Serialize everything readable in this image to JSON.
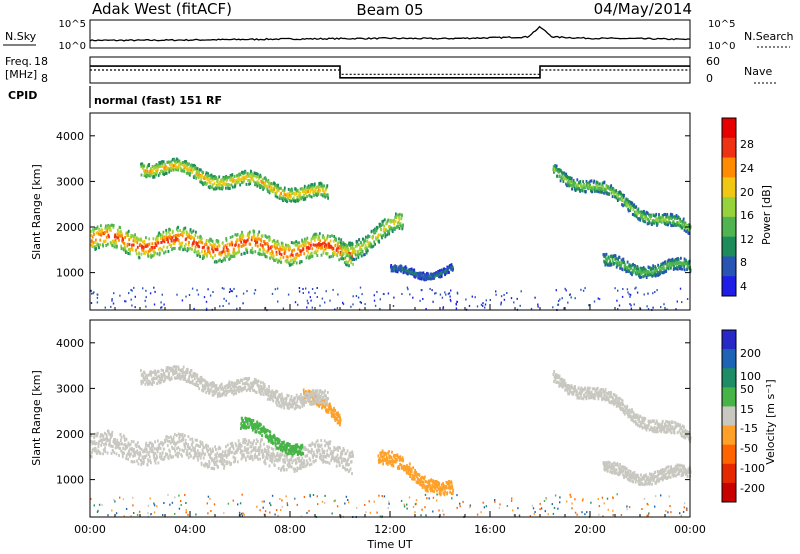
{
  "header": {
    "station": "Adak West (fitACF)",
    "beam": "Beam 05",
    "date": "04/May/2014"
  },
  "sky_panel": {
    "left_label": "N.Sky",
    "right_label": "N.Search",
    "left_ticks": [
      "10^5",
      "10^0"
    ],
    "right_ticks": [
      "10^5",
      "10^0"
    ]
  },
  "freq_panel": {
    "left_label_line1": "Freq.",
    "left_label_line2": "[MHz]",
    "left_ticks": [
      "18",
      "8"
    ],
    "right_ticks": [
      "60",
      "0"
    ],
    "right_label": "Nave",
    "freq_segments": [
      {
        "from_hour": 0,
        "to_hour": 10,
        "value": 14.5
      },
      {
        "from_hour": 10,
        "to_hour": 18,
        "value": 10.0
      },
      {
        "from_hour": 18,
        "to_hour": 24,
        "value": 14.5
      }
    ],
    "nave_segments": [
      {
        "from_hour": 0,
        "to_hour": 10,
        "value": 30
      },
      {
        "from_hour": 10,
        "to_hour": 18,
        "value": 20
      },
      {
        "from_hour": 18,
        "to_hour": 24,
        "value": 30
      }
    ]
  },
  "cpid": {
    "label": "CPID",
    "program": "normal (fast) 151 RF"
  },
  "time_axis": {
    "label": "Time UT",
    "ticks": [
      "00:00",
      "04:00",
      "08:00",
      "12:00",
      "16:00",
      "20:00",
      "00:00"
    ]
  },
  "power_panel": {
    "ylabel": "Slant Range [km]",
    "yticks": [
      "4000",
      "3000",
      "2000",
      "1000"
    ],
    "colorbar_label": "Power [dB]",
    "colorbar_ticks": [
      "28",
      "24",
      "20",
      "16",
      "12",
      "8",
      "4"
    ],
    "colors": [
      "#1e1ee6",
      "#2855b4",
      "#1e8c5a",
      "#50b450",
      "#96d23c",
      "#f0c814",
      "#ff8c00",
      "#f03214",
      "#e60000"
    ]
  },
  "velocity_panel": {
    "ylabel": "Slant Range [km]",
    "yticks": [
      "4000",
      "3000",
      "2000",
      "1000"
    ],
    "colorbar_label": "Velocity [m s⁻¹]",
    "colorbar_ticks": [
      "200",
      "100",
      "50",
      "15",
      "-15",
      "-50",
      "-100",
      "-200"
    ],
    "colors": [
      "#2828c8",
      "#1e64b4",
      "#1e8c64",
      "#46b446",
      "#c8c8c0",
      "#ffa028",
      "#ff6400",
      "#e62800",
      "#c80000"
    ]
  },
  "chart_data": [
    {
      "type": "line",
      "title": "N.Sky / N.Search",
      "x_hours": [
        0,
        2,
        4,
        6,
        8,
        10,
        12,
        14,
        16,
        17.5,
        18,
        18.5,
        20,
        22,
        24
      ],
      "series": [
        {
          "name": "N.Sky",
          "values": [
            0.1,
            0.1,
            0.12,
            0.15,
            0.18,
            0.2,
            0.22,
            0.2,
            0.25,
            0.3,
            0.9,
            0.3,
            0.22,
            0.2,
            0.15
          ]
        }
      ],
      "ylim": [
        0,
        1
      ]
    },
    {
      "type": "line",
      "title": "Frequency / Nave",
      "x_hours": [
        0,
        10,
        10,
        18,
        18,
        24
      ],
      "series": [
        {
          "name": "Freq.",
          "values": [
            14.5,
            14.5,
            10,
            10,
            14.5,
            14.5
          ]
        },
        {
          "name": "Nave",
          "values": [
            30,
            30,
            20,
            20,
            30,
            30
          ]
        }
      ],
      "ylim_left": [
        8,
        18
      ],
      "ylim_right": [
        0,
        60
      ]
    },
    {
      "type": "heatmap",
      "title": "Power [dB]",
      "xlabel": "Time UT",
      "ylabel": "Slant Range [km]",
      "xlim_hours": [
        0,
        24
      ],
      "ylim_km": [
        180,
        4500
      ],
      "echo_bands": [
        {
          "t0": 0.0,
          "t1": 10.5,
          "r_center_start": 1750,
          "r_center_end": 1500,
          "width": 500,
          "peak_db": 28
        },
        {
          "t0": 10.0,
          "t1": 12.5,
          "r_center_start": 1500,
          "r_center_end": 2100,
          "width": 400,
          "peak_db": 20
        },
        {
          "t0": 2.0,
          "t1": 9.5,
          "r_center_start": 3400,
          "r_center_end": 2700,
          "width": 300,
          "peak_db": 22
        },
        {
          "t0": 12.0,
          "t1": 14.5,
          "r_center_start": 1000,
          "r_center_end": 1100,
          "width": 150,
          "peak_db": 8
        },
        {
          "t0": 18.5,
          "t1": 24.0,
          "r_center_start": 3300,
          "r_center_end": 1900,
          "width": 250,
          "peak_db": 16
        },
        {
          "t0": 20.5,
          "t1": 24.0,
          "r_center_start": 1200,
          "r_center_end": 1100,
          "width": 250,
          "peak_db": 14
        }
      ]
    },
    {
      "type": "heatmap",
      "title": "Velocity [m s⁻¹]",
      "xlabel": "Time UT",
      "ylabel": "Slant Range [km]",
      "xlim_hours": [
        0,
        24
      ],
      "ylim_km": [
        180,
        4500
      ],
      "echo_bands": [
        {
          "t0": 0.0,
          "t1": 10.5,
          "r_center_start": 1750,
          "r_center_end": 1500,
          "width": 500,
          "velocity": -10
        },
        {
          "t0": 6.0,
          "t1": 8.5,
          "r_center_start": 2200,
          "r_center_end": 1700,
          "width": 250,
          "velocity": 30
        },
        {
          "t0": 8.5,
          "t1": 10.0,
          "r_center_start": 2900,
          "r_center_end": 2300,
          "width": 250,
          "velocity": -40
        },
        {
          "t0": 2.0,
          "t1": 9.5,
          "r_center_start": 3400,
          "r_center_end": 2700,
          "width": 300,
          "velocity": -8
        },
        {
          "t0": 11.5,
          "t1": 14.5,
          "r_center_start": 1500,
          "r_center_end": 800,
          "width": 300,
          "velocity": -40
        },
        {
          "t0": 18.5,
          "t1": 24.0,
          "r_center_start": 3300,
          "r_center_end": 1900,
          "width": 250,
          "velocity": -5
        },
        {
          "t0": 20.5,
          "t1": 24.0,
          "r_center_start": 1200,
          "r_center_end": 1100,
          "width": 250,
          "velocity": -5
        }
      ]
    }
  ]
}
